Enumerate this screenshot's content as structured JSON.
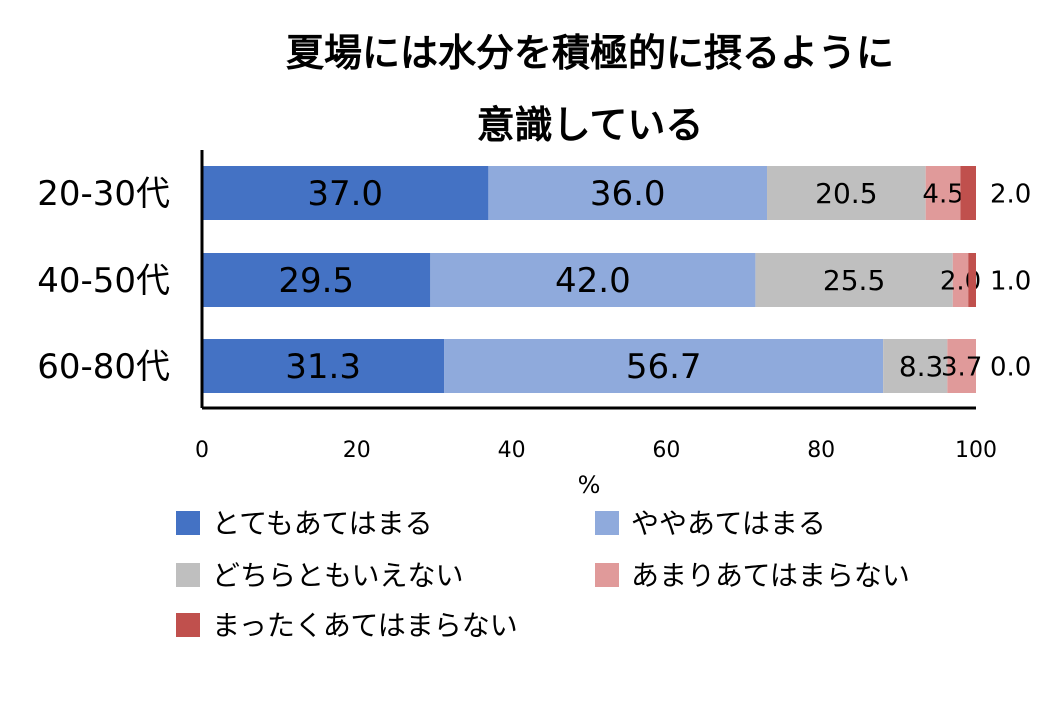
{
  "chart_data": {
    "type": "bar",
    "orientation": "horizontal",
    "stacked": true,
    "title_lines": [
      "夏場には水分を積極的に摂るように",
      "意識している"
    ],
    "categories": [
      "20-30代",
      "40-50代",
      "60-80代"
    ],
    "series": [
      {
        "name": "とてもあてはまる",
        "color": "#4472C4",
        "values": [
          37.0,
          29.5,
          31.3
        ],
        "labels": [
          "37.0",
          "29.5",
          "31.3"
        ]
      },
      {
        "name": "ややあてはまる",
        "color": "#8FAADC",
        "values": [
          36.0,
          42.0,
          56.7
        ],
        "labels": [
          "36.0",
          "42.0",
          "56.7"
        ]
      },
      {
        "name": "どちらともいえない",
        "color": "#BFBFBF",
        "values": [
          20.5,
          25.5,
          8.3
        ],
        "labels": [
          "20.5",
          "25.5",
          "8.3"
        ]
      },
      {
        "name": "あまりあてはまらない",
        "color": "#E09A9A",
        "values": [
          4.5,
          2.0,
          3.7
        ],
        "labels": [
          "4.5",
          "2.0",
          "3.7"
        ]
      },
      {
        "name": "まったくあてはまらない",
        "color": "#C0504D",
        "values": [
          2.0,
          1.0,
          0.0
        ],
        "labels": [
          "2.0",
          "1.0",
          "0.0"
        ]
      }
    ],
    "x_ticks": [
      "0",
      "20",
      "40",
      "60",
      "80",
      "100"
    ],
    "xlim": [
      0,
      100
    ],
    "xlabel": "%",
    "grid": false,
    "legend_position": "bottom"
  }
}
